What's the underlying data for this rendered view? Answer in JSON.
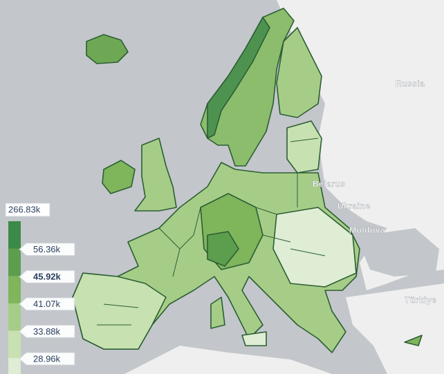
{
  "map": {
    "place_labels": [
      "Russia",
      "Belarus",
      "Ukraine",
      "Moldova",
      "Türkiye"
    ],
    "legend": {
      "ticks": [
        {
          "value": 266830,
          "label": "266.83k"
        },
        {
          "value": 56360,
          "label": "56.36k"
        },
        {
          "value": 45920,
          "label": "45.92k"
        },
        {
          "value": 41070,
          "label": "41.07k"
        },
        {
          "value": 33880,
          "label": "33.88k"
        },
        {
          "value": 28960,
          "label": "28.96k"
        }
      ],
      "colors": [
        "#3b8a47",
        "#5d9d4e",
        "#7fb55b",
        "#a6cd87",
        "#c7e1b1",
        "#deedd3"
      ]
    }
  }
}
